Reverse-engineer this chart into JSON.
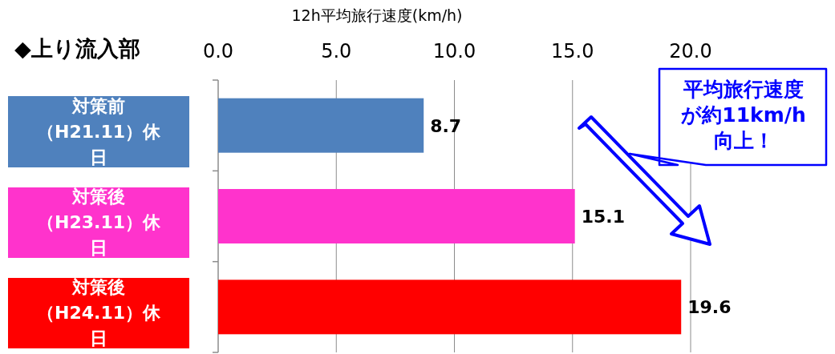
{
  "chart_data": {
    "type": "bar",
    "orientation": "horizontal",
    "title": "◆上り流入部",
    "xlabel": "12h平均旅行速度(km/h)",
    "categories": [
      "対策前（H21.11）休日",
      "対策後（H23.11）休日",
      "対策後（H24.11）休日"
    ],
    "values": [
      8.7,
      15.1,
      19.6
    ],
    "colors": [
      "#4f81bd",
      "#ff33cc",
      "#ff0000"
    ],
    "xlim": [
      0,
      20
    ],
    "xticks": [
      {
        "value": 0,
        "label": "0.0"
      },
      {
        "value": 5,
        "label": "5.0"
      },
      {
        "value": 10,
        "label": "10.0"
      },
      {
        "value": 15,
        "label": "15.0"
      },
      {
        "value": 20,
        "label": "20.0"
      }
    ],
    "grid": "x",
    "data_labels": true,
    "annotations": [
      "平均旅行速度が約11km/h向上！"
    ]
  }
}
